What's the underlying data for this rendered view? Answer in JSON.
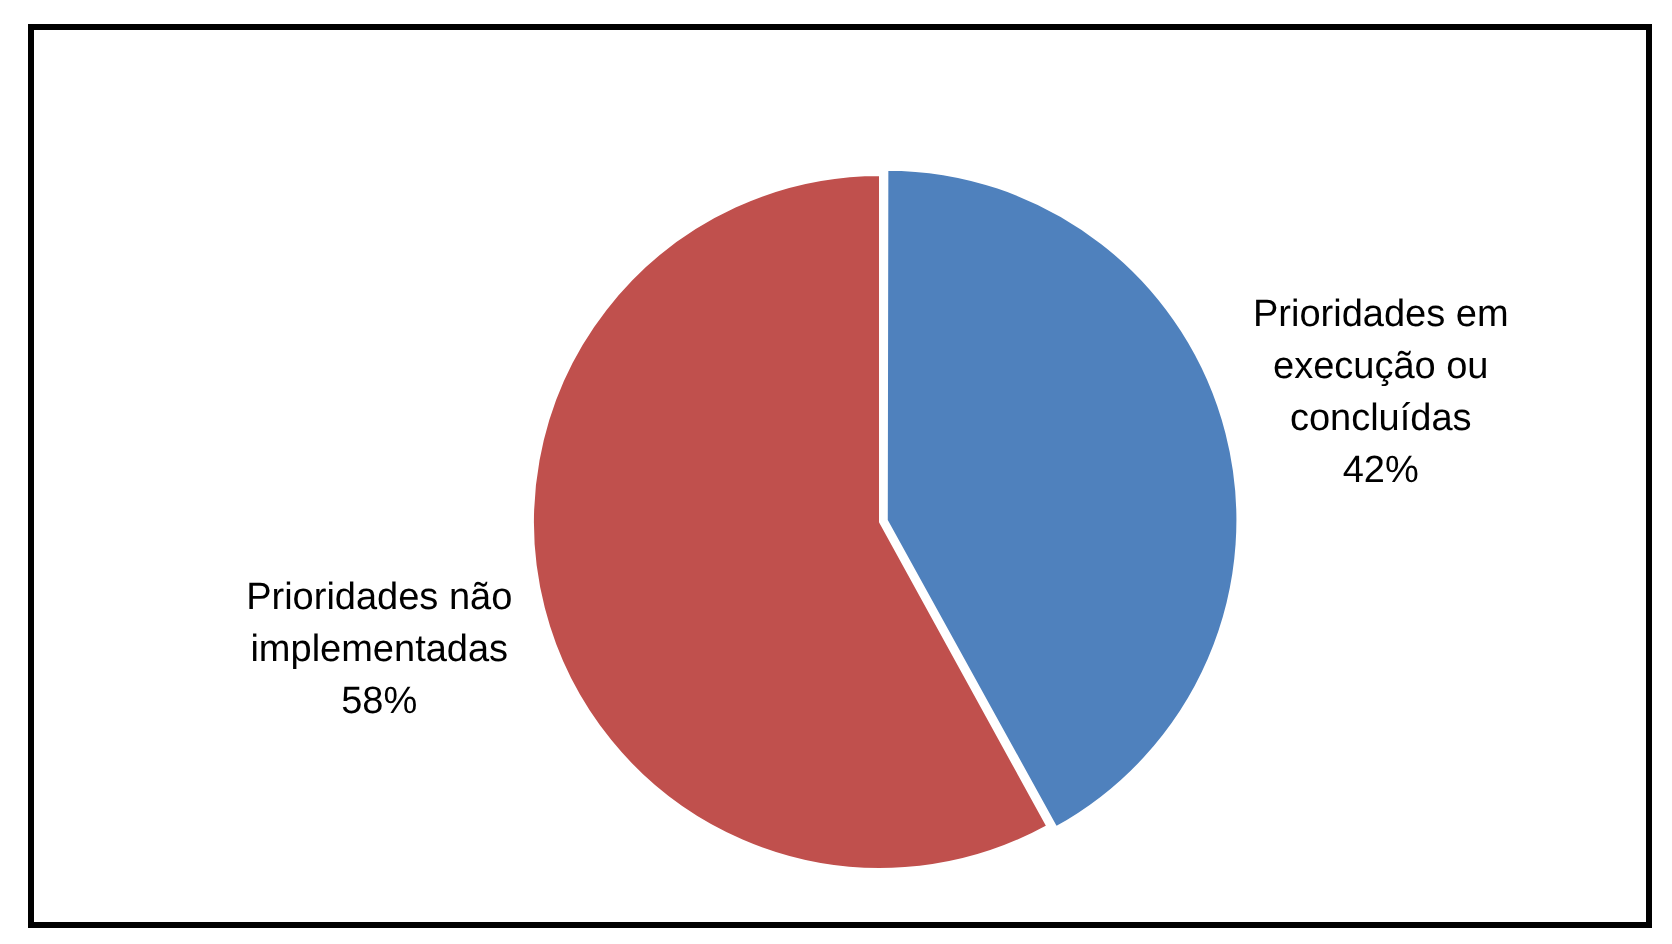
{
  "chart_data": {
    "type": "pie",
    "categories": [
      "Prioridades em execução ou concluídas",
      "Prioridades não implementadas"
    ],
    "values": [
      42,
      58
    ],
    "colors": [
      "#4f81bd",
      "#c0504d"
    ],
    "value_labels": [
      "42%",
      "58%"
    ],
    "legend": false
  }
}
